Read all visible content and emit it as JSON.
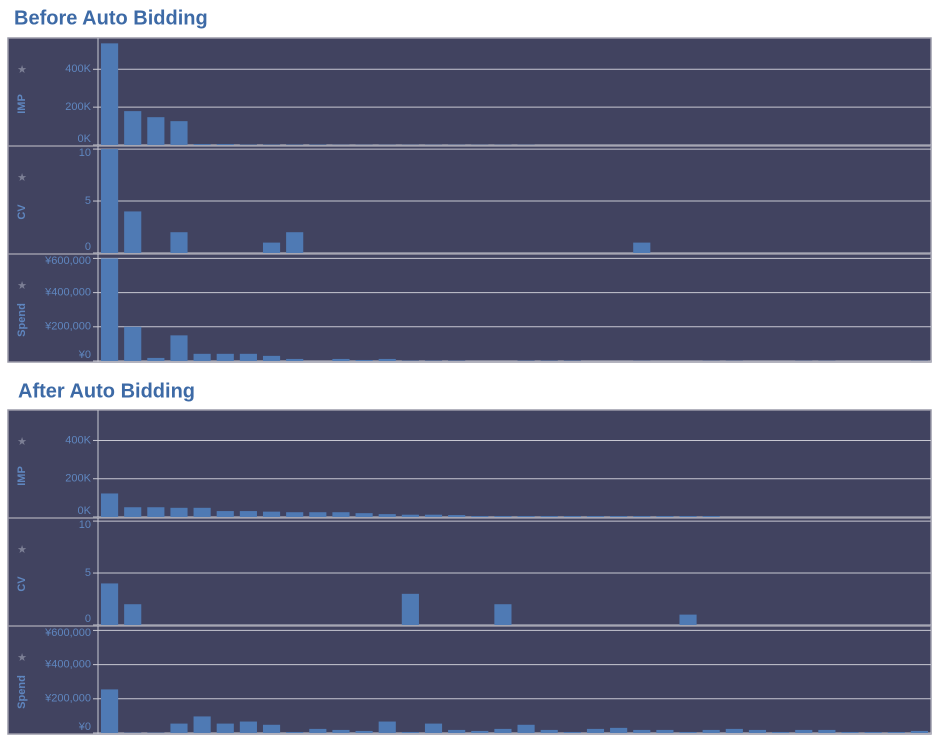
{
  "chart_data": [
    {
      "type": "bar",
      "title": "Before Auto Bidding",
      "color": "#4f7ab4",
      "grid": true,
      "categories": [
        null,
        null,
        null,
        null,
        null,
        null,
        null,
        null,
        null,
        null,
        null,
        null,
        null,
        null,
        null,
        null,
        null,
        null,
        null,
        null,
        null,
        null,
        null,
        null,
        null,
        null,
        null,
        null,
        null,
        null,
        null,
        null,
        null,
        null,
        null,
        null
      ],
      "panels": [
        {
          "ylabel": "IMP",
          "ylim": [
            0,
            560000
          ],
          "yticks": [
            {
              "value": 0,
              "label": "0K"
            },
            {
              "value": 200000,
              "label": "200K"
            },
            {
              "value": 400000,
              "label": "400K"
            }
          ],
          "values": [
            537000,
            179000,
            147000,
            126000,
            5000,
            5000,
            2000,
            2000,
            2000,
            2000,
            1000,
            1000,
            1000,
            1000,
            1000,
            1000,
            1000,
            1000,
            1000,
            0,
            0,
            0,
            0,
            0,
            0,
            0,
            0,
            0,
            0,
            0,
            0,
            0,
            0,
            0,
            0,
            0
          ]
        },
        {
          "ylabel": "CV",
          "ylim": [
            0,
            10.2
          ],
          "yticks": [
            0,
            5,
            10
          ],
          "values": [
            10,
            4,
            0,
            2,
            0,
            0,
            0,
            1,
            2,
            0,
            0,
            0,
            0,
            0,
            0,
            0,
            0,
            0,
            0,
            0,
            0,
            0,
            0,
            1,
            0,
            0,
            0,
            0,
            0,
            0,
            0,
            0,
            0,
            0,
            0,
            0
          ]
        },
        {
          "ylabel": "Spend",
          "ylim": [
            0,
            620000
          ],
          "yticks": [
            {
              "value": 0,
              "label": "¥0"
            },
            {
              "value": 200000,
              "label": "¥200,000"
            },
            {
              "value": 400000,
              "label": "¥400,000"
            },
            {
              "value": 600000,
              "label": "¥600,000"
            }
          ],
          "values": [
            600000,
            200000,
            18000,
            150000,
            42000,
            42000,
            42000,
            30000,
            12000,
            0,
            12000,
            6000,
            12000,
            2000,
            2000,
            2000,
            0,
            0,
            2000,
            2000,
            2000,
            0,
            0,
            1000,
            0,
            0,
            1000,
            1000,
            0,
            0,
            1000,
            1000,
            0,
            0,
            0,
            1000
          ]
        }
      ]
    },
    {
      "type": "bar",
      "title": "After Auto Bidding",
      "color": "#4f7ab4",
      "grid": true,
      "categories": [
        null,
        null,
        null,
        null,
        null,
        null,
        null,
        null,
        null,
        null,
        null,
        null,
        null,
        null,
        null,
        null,
        null,
        null,
        null,
        null,
        null,
        null,
        null,
        null,
        null,
        null,
        null,
        null,
        null,
        null,
        null,
        null,
        null,
        null,
        null,
        null
      ],
      "panels": [
        {
          "ylabel": "IMP",
          "ylim": [
            0,
            554000
          ],
          "yticks": [
            {
              "value": 0,
              "label": "0K"
            },
            {
              "value": 200000,
              "label": "200K"
            },
            {
              "value": 400000,
              "label": "400K"
            }
          ],
          "values": [
            123000,
            51000,
            51000,
            48000,
            48000,
            31000,
            31000,
            28000,
            25000,
            25000,
            25000,
            20000,
            15000,
            12000,
            12000,
            10000,
            5000,
            5000,
            5000,
            5000,
            5000,
            5000,
            5000,
            5000,
            5000,
            5000,
            5000,
            0,
            0,
            0,
            0,
            0,
            0,
            0,
            0,
            0
          ]
        },
        {
          "ylabel": "CV",
          "ylim": [
            0,
            10.2
          ],
          "yticks": [
            0,
            5,
            10
          ],
          "values": [
            4,
            2,
            0,
            0,
            0,
            0,
            0,
            0,
            0,
            0,
            0,
            0,
            0,
            3,
            0,
            0,
            0,
            2,
            0,
            0,
            0,
            0,
            0,
            0,
            0,
            1,
            0,
            0,
            0,
            0,
            0,
            0,
            0,
            0,
            0,
            0
          ]
        },
        {
          "ylabel": "Spend",
          "ylim": [
            0,
            620000
          ],
          "yticks": [
            {
              "value": 0,
              "label": "¥0"
            },
            {
              "value": 200000,
              "label": "¥200,000"
            },
            {
              "value": 400000,
              "label": "¥400,000"
            },
            {
              "value": 600000,
              "label": "¥600,000"
            }
          ],
          "values": [
            255000,
            2000,
            2000,
            55000,
            97000,
            55000,
            67000,
            48000,
            6000,
            24000,
            18000,
            12000,
            67000,
            6000,
            55000,
            18000,
            12000,
            24000,
            48000,
            18000,
            6000,
            24000,
            30000,
            18000,
            18000,
            6000,
            18000,
            24000,
            18000,
            6000,
            18000,
            18000,
            6000,
            6000,
            6000,
            12000
          ]
        }
      ]
    }
  ]
}
